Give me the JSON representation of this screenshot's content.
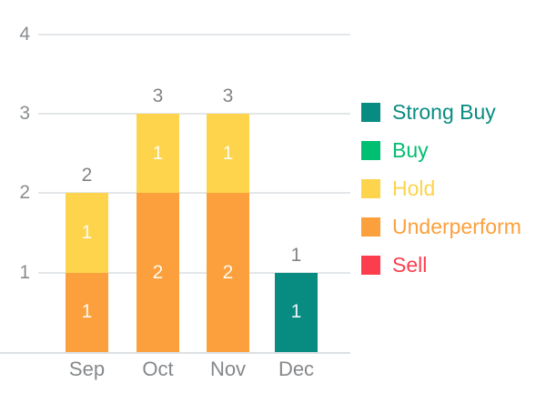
{
  "chart_data": {
    "type": "bar",
    "variant": "stacked-vertical",
    "title": "",
    "xlabel": "",
    "ylabel": "",
    "categories": [
      "Sep",
      "Oct",
      "Nov",
      "Dec"
    ],
    "series": [
      {
        "name": "Strong Buy",
        "color": "#088C81",
        "values": [
          0,
          0,
          0,
          1
        ]
      },
      {
        "name": "Buy",
        "color": "#00BF70",
        "values": [
          0,
          0,
          0,
          0
        ]
      },
      {
        "name": "Hold",
        "color": "#FDD44B",
        "values": [
          1,
          1,
          1,
          0
        ]
      },
      {
        "name": "Underperform",
        "color": "#FBA03C",
        "values": [
          1,
          2,
          2,
          0
        ]
      },
      {
        "name": "Sell",
        "color": "#FC3D4D",
        "values": [
          0,
          0,
          0,
          0
        ]
      }
    ],
    "stack_order_bottom_to_top": [
      "Sell",
      "Underperform",
      "Hold",
      "Buy",
      "Strong Buy"
    ],
    "bar_totals": [
      2,
      3,
      3,
      1
    ],
    "segment_labels_shown_in_bars": true,
    "y_ticks": [
      1,
      2,
      3,
      4
    ],
    "ylim": [
      0,
      4
    ],
    "grid": "horizontal",
    "legend": {
      "position": "right",
      "entries": [
        "Strong Buy",
        "Buy",
        "Hold",
        "Underperform",
        "Sell"
      ]
    }
  },
  "colors": {
    "gridline": "#E4E7EA",
    "axis_line": "#DDE0E3",
    "tick_label": "#8A8D90",
    "total_label": "#818487",
    "x_label": "#85888B",
    "bar_value_label": "#FFFFFF",
    "background": "#FFFFFF"
  }
}
